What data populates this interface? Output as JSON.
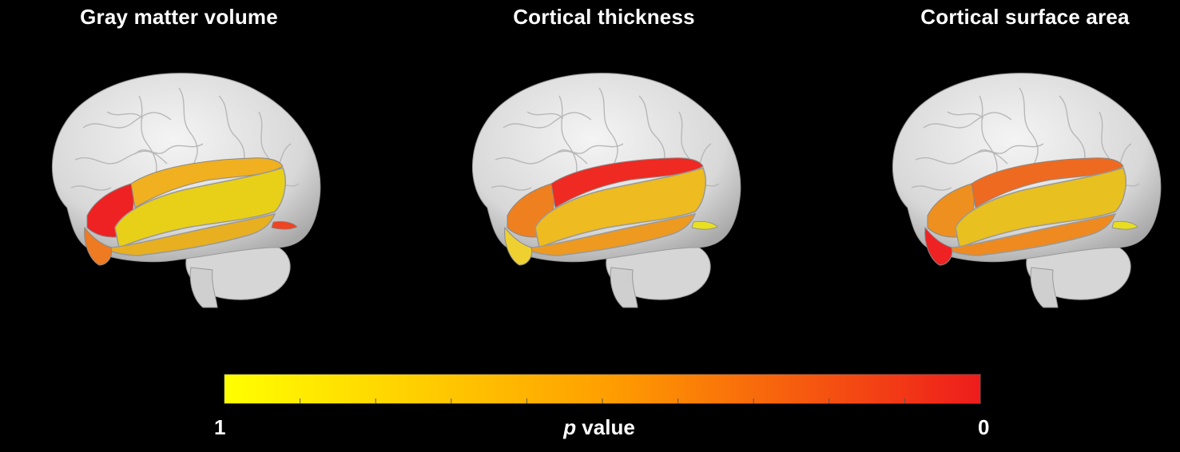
{
  "panels": [
    {
      "title": "Gray matter volume",
      "regions": {
        "frontal": "#ee2222",
        "superior": "#f0b020",
        "middle": "#e8d018",
        "inferior": "#e8b020",
        "pole": "#ee7a22",
        "hippo": "#ee4422"
      }
    },
    {
      "title": "Cortical thickness",
      "regions": {
        "frontal": "#ee8020",
        "superior": "#ee2a22",
        "middle": "#eebb20",
        "inferior": "#ee9a20",
        "pole": "#eed030",
        "hippo": "#e8e020"
      }
    },
    {
      "title": "Cortical surface area",
      "regions": {
        "frontal": "#ee9020",
        "superior": "#ee6a20",
        "middle": "#e8c020",
        "inferior": "#ee8a20",
        "pole": "#ee2222",
        "hippo": "#e8dd20"
      }
    }
  ],
  "colorbar": {
    "title_var": "p",
    "title_rest": " value",
    "min_label": "1",
    "max_label": "0",
    "color_start": "#ffff00",
    "color_mid": "#ffa000",
    "color_end": "#ee1c1c",
    "tick_count": 9
  }
}
